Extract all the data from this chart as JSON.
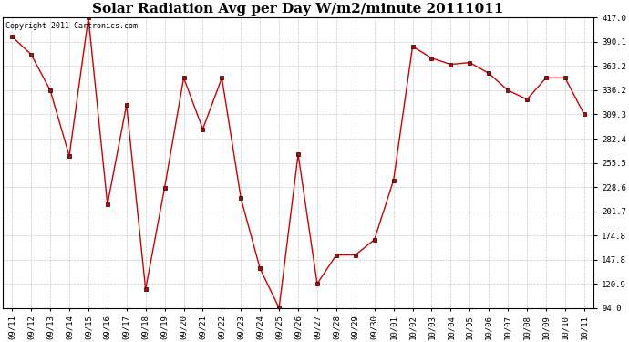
{
  "title": "Solar Radiation Avg per Day W/m2/minute 20111011",
  "copyright": "Copyright 2011 Cartronics.com",
  "x_labels": [
    "09/11",
    "09/12",
    "09/13",
    "09/14",
    "09/15",
    "09/16",
    "09/17",
    "09/18",
    "09/19",
    "09/20",
    "09/21",
    "09/22",
    "09/23",
    "09/24",
    "09/25",
    "09/26",
    "09/27",
    "09/28",
    "09/29",
    "09/30",
    "10/01",
    "10/02",
    "10/03",
    "10/04",
    "10/05",
    "10/06",
    "10/07",
    "10/08",
    "10/09",
    "10/10",
    "10/11"
  ],
  "y_values": [
    396.0,
    376.0,
    336.2,
    263.0,
    417.0,
    209.0,
    320.0,
    115.0,
    228.0,
    350.0,
    293.0,
    350.0,
    216.0,
    138.0,
    94.0,
    265.0,
    121.0,
    153.0,
    153.0,
    170.0,
    236.0,
    385.0,
    372.0,
    365.0,
    367.0,
    355.0,
    336.2,
    326.0,
    350.0,
    350.0,
    309.3
  ],
  "line_color": "#cc0000",
  "marker_color": "#cc0000",
  "bg_color": "#ffffff",
  "grid_color": "#bbbbbb",
  "y_ticks": [
    94.0,
    120.9,
    147.8,
    174.8,
    201.7,
    228.6,
    255.5,
    282.4,
    309.3,
    336.2,
    363.2,
    390.1,
    417.0
  ],
  "ylim": [
    94.0,
    417.0
  ],
  "title_fontsize": 11,
  "tick_fontsize": 6.5,
  "copyright_fontsize": 6.0
}
